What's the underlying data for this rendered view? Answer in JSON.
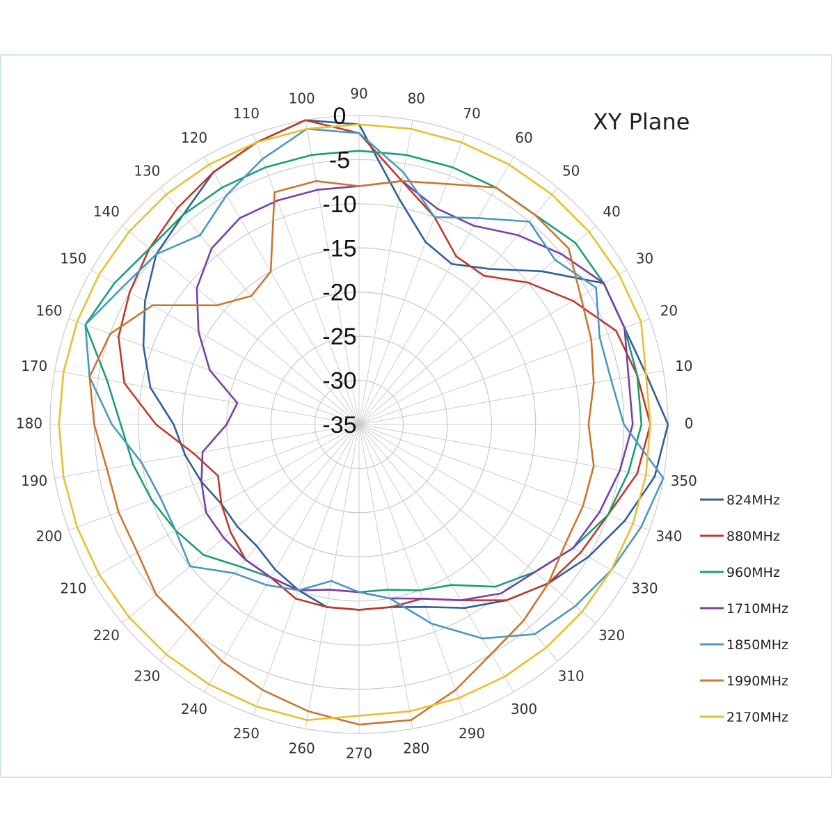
{
  "chart_data": {
    "type": "line",
    "subtype": "polar",
    "title": "XY Plane",
    "angle_ticks": [
      "0",
      "10",
      "20",
      "30",
      "40",
      "50",
      "60",
      "70",
      "80",
      "90",
      "100",
      "110",
      "120",
      "130",
      "140",
      "150",
      "160",
      "170",
      "180",
      "190",
      "200",
      "210",
      "220",
      "230",
      "240",
      "250",
      "260",
      "270",
      "280",
      "290",
      "300",
      "310",
      "320",
      "330",
      "340",
      "350"
    ],
    "radial_ticks": [
      "0",
      "-5",
      "-10",
      "-15",
      "-20",
      "-25",
      "-30",
      "-35"
    ],
    "rlim": [
      -35,
      0
    ],
    "angles": [
      0,
      10,
      20,
      30,
      40,
      50,
      60,
      70,
      80,
      90,
      100,
      110,
      120,
      130,
      140,
      150,
      160,
      170,
      180,
      190,
      200,
      210,
      220,
      230,
      240,
      250,
      260,
      270,
      280,
      290,
      300,
      310,
      320,
      330,
      340,
      350
    ],
    "grid": true,
    "legend_position": "right",
    "series": [
      {
        "name": "824MHz",
        "color": "#2d5f9a",
        "values": [
          0,
          -2,
          -3,
          -3,
          -8,
          -12,
          -14,
          -13,
          -9,
          -1,
          0,
          -1,
          -2,
          -4,
          -5,
          -7,
          -9,
          -11,
          -14,
          -15,
          -16,
          -17,
          -17,
          -17,
          -16,
          -15,
          -14,
          -14,
          -14,
          -13,
          -11,
          -9,
          -7,
          -5,
          -3,
          -1
        ]
      },
      {
        "name": "880MHz",
        "color": "#c0392b",
        "values": [
          -2,
          -3,
          -4,
          -7,
          -10,
          -13,
          -13,
          -10,
          -7,
          -2,
          0,
          -1,
          -2,
          -3,
          -4,
          -5,
          -6,
          -8,
          -12,
          -16,
          -18,
          -17,
          -16,
          -15,
          -15,
          -14,
          -14,
          -14,
          -14,
          -14,
          -12,
          -9,
          -7,
          -6,
          -5,
          -3
        ]
      },
      {
        "name": "960MHz",
        "color": "#1a9e74",
        "values": [
          -3,
          -3,
          -3,
          -3,
          -3,
          -4,
          -4,
          -4,
          -4,
          -4,
          -4,
          -4,
          -4,
          -4,
          -4,
          -3,
          -2,
          -6,
          -8,
          -9,
          -10,
          -11,
          -12,
          -14,
          -15,
          -15,
          -16,
          -16,
          -16,
          -15,
          -14,
          -11,
          -9,
          -7,
          -5,
          -4
        ]
      },
      {
        "name": "1710MHz",
        "color": "#7b3fa8",
        "values": [
          -4,
          -4,
          -3,
          -3,
          -5,
          -7,
          -9,
          -9,
          -7,
          -8,
          -8,
          -8,
          -8,
          -9,
          -11,
          -14,
          -17,
          -21,
          -20,
          -17,
          -16,
          -15,
          -15,
          -15,
          -15,
          -15,
          -16,
          -16,
          -15,
          -14,
          -12,
          -10,
          -9,
          -7,
          -6,
          -5
        ]
      },
      {
        "name": "1850MHz",
        "color": "#4a98c0",
        "values": [
          -5,
          -6,
          -6,
          -4,
          -6,
          -5,
          -8,
          -10,
          -6,
          -2,
          -1,
          -3,
          -5,
          -7,
          -5,
          -4,
          -2,
          -4,
          -7,
          -10,
          -11,
          -11,
          -10,
          -13,
          -14,
          -15,
          -17,
          -16,
          -15,
          -11,
          -7,
          -4,
          -3,
          -2,
          -1,
          0
        ]
      },
      {
        "name": "1990MHz",
        "color": "#c8772e",
        "values": [
          -9,
          -8,
          -7,
          -6,
          -4,
          -4,
          -4,
          -6,
          -7,
          -8,
          -7,
          -7,
          -15,
          -16,
          -14,
          -8,
          -5,
          -4,
          -5,
          -6,
          -6,
          -6,
          -5,
          -5,
          -4,
          -3,
          -2,
          -1,
          -1,
          -3,
          -5,
          -6,
          -7,
          -8,
          -8,
          -8
        ]
      },
      {
        "name": "2170MHz",
        "color": "#e8bf2e",
        "values": [
          -2,
          -2,
          -1,
          -1,
          -1,
          -1,
          -1,
          -1,
          -1,
          -1,
          -1,
          -1,
          -1,
          -1,
          -1,
          -1,
          -1,
          -1,
          -1,
          -1,
          -1,
          -1,
          -1,
          -1,
          -1,
          -1,
          -1,
          -2,
          -2,
          -2,
          -2,
          -2,
          -2,
          -2,
          -2,
          -2
        ]
      }
    ]
  }
}
